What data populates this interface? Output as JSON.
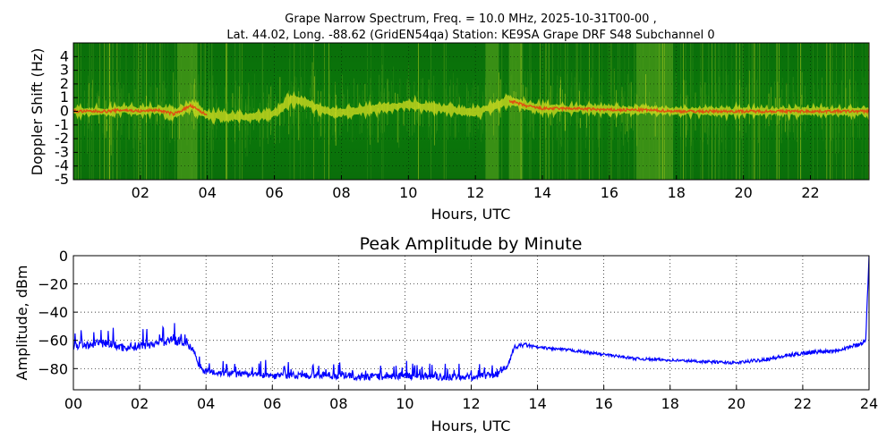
{
  "figure": {
    "title_line1": "Grape Narrow Spectrum, Freq. = 10.0 MHz, 2025-10-31T00-00 ,",
    "title_line2": "Lat.  44.02, Long. -88.62 (GridEN54qa) Station: KE9SA Grape DRF S48 Subchannel 0"
  },
  "colors": {
    "spectrum_background": "#0a6e0a",
    "spectrum_noise": "#4a9a1a",
    "spectrum_signal": "#d8e020",
    "spectrum_peak": "#e83a10",
    "amplitude_line": "#0000ff",
    "grid": "#000000"
  },
  "chart_data": [
    {
      "type": "heatmap",
      "title": "",
      "xlabel": "Hours, UTC",
      "ylabel": "Doppler Shift (Hz)",
      "xlim": [
        0,
        23.75
      ],
      "ylim": [
        -5,
        5
      ],
      "x_ticks": [
        "02",
        "04",
        "06",
        "08",
        "10",
        "12",
        "14",
        "16",
        "18",
        "20",
        "22"
      ],
      "x_tick_values": [
        2,
        4,
        6,
        8,
        10,
        12,
        14,
        16,
        18,
        20,
        22
      ],
      "y_ticks": [
        "4",
        "3",
        "2",
        "1",
        "0",
        "-1",
        "-2",
        "-3",
        "-4",
        "-5"
      ],
      "y_tick_values": [
        4,
        3,
        2,
        1,
        0,
        -1,
        -2,
        -3,
        -4,
        -5
      ],
      "grid": true,
      "bright_time_bands_hours": [
        [
          3.1,
          3.7
        ],
        [
          12.3,
          12.7
        ],
        [
          13.0,
          13.4
        ],
        [
          16.8,
          17.9
        ]
      ],
      "doppler_trace": {
        "hours": [
          0,
          0.5,
          1.0,
          1.5,
          2.0,
          2.5,
          3.0,
          3.5,
          4.0,
          5.0,
          6.0,
          6.5,
          7.0,
          7.5,
          8.0,
          9.0,
          10.0,
          11.0,
          12.0,
          12.5,
          13.0,
          13.5,
          14.0,
          15.0,
          16.0,
          17.0,
          18.0,
          19.0,
          20.0,
          21.0,
          22.0,
          23.0,
          23.75
        ],
        "doppler": [
          0,
          0,
          0,
          0.1,
          0,
          0.1,
          -0.2,
          0.4,
          -0.3,
          -0.4,
          -0.2,
          0.9,
          0.6,
          0,
          -0.1,
          0.2,
          0.5,
          0.2,
          -0.1,
          0.3,
          0.8,
          0.4,
          0.2,
          0.2,
          0.1,
          0.1,
          0,
          0,
          0,
          0,
          0,
          0,
          0
        ],
        "strong_until_hour": 4.0,
        "strong_from_hour": 13.0
      }
    },
    {
      "type": "line",
      "title": "Peak Amplitude by Minute",
      "xlabel": "Hours, UTC",
      "ylabel": "Amplitude, dBm",
      "xlim": [
        0,
        24
      ],
      "ylim": [
        -95,
        0
      ],
      "x_ticks": [
        "00",
        "02",
        "04",
        "06",
        "08",
        "10",
        "12",
        "14",
        "16",
        "18",
        "20",
        "22",
        "24"
      ],
      "x_tick_values": [
        0,
        2,
        4,
        6,
        8,
        10,
        12,
        14,
        16,
        18,
        20,
        22,
        24
      ],
      "y_ticks": [
        "0",
        "−20",
        "−40",
        "−60",
        "−80"
      ],
      "y_tick_values": [
        0,
        -20,
        -40,
        -60,
        -80
      ],
      "grid": true,
      "series": [
        {
          "x": [
            0,
            0.5,
            1.0,
            1.5,
            2.0,
            2.5,
            3.0,
            3.3,
            3.6,
            3.8,
            4.0,
            5.0,
            6.0,
            7.0,
            8.0,
            9.0,
            10.0,
            11.0,
            12.0,
            12.8,
            13.1,
            13.3,
            13.6,
            14.0,
            15.0,
            16.0,
            17.0,
            18.0,
            19.0,
            20.0,
            21.0,
            22.0,
            23.0,
            23.7,
            23.9,
            24.0
          ],
          "values": [
            -64,
            -63,
            -62,
            -65,
            -64,
            -62,
            -60,
            -61,
            -66,
            -78,
            -82,
            -84,
            -85,
            -85,
            -85,
            -86,
            -85,
            -86,
            -86,
            -84,
            -78,
            -65,
            -63,
            -65,
            -67,
            -70,
            -73,
            -74,
            -75,
            -76,
            -73,
            -69,
            -67,
            -63,
            -60,
            0
          ],
          "jitter": [
            6,
            6,
            6,
            6,
            6,
            6,
            6,
            6,
            4,
            4,
            5,
            5,
            5,
            5,
            5,
            5,
            5,
            5,
            5,
            5,
            3,
            3,
            3,
            2,
            2,
            2,
            2,
            2,
            2,
            2,
            3,
            3,
            3,
            3,
            3,
            0
          ]
        }
      ]
    }
  ]
}
